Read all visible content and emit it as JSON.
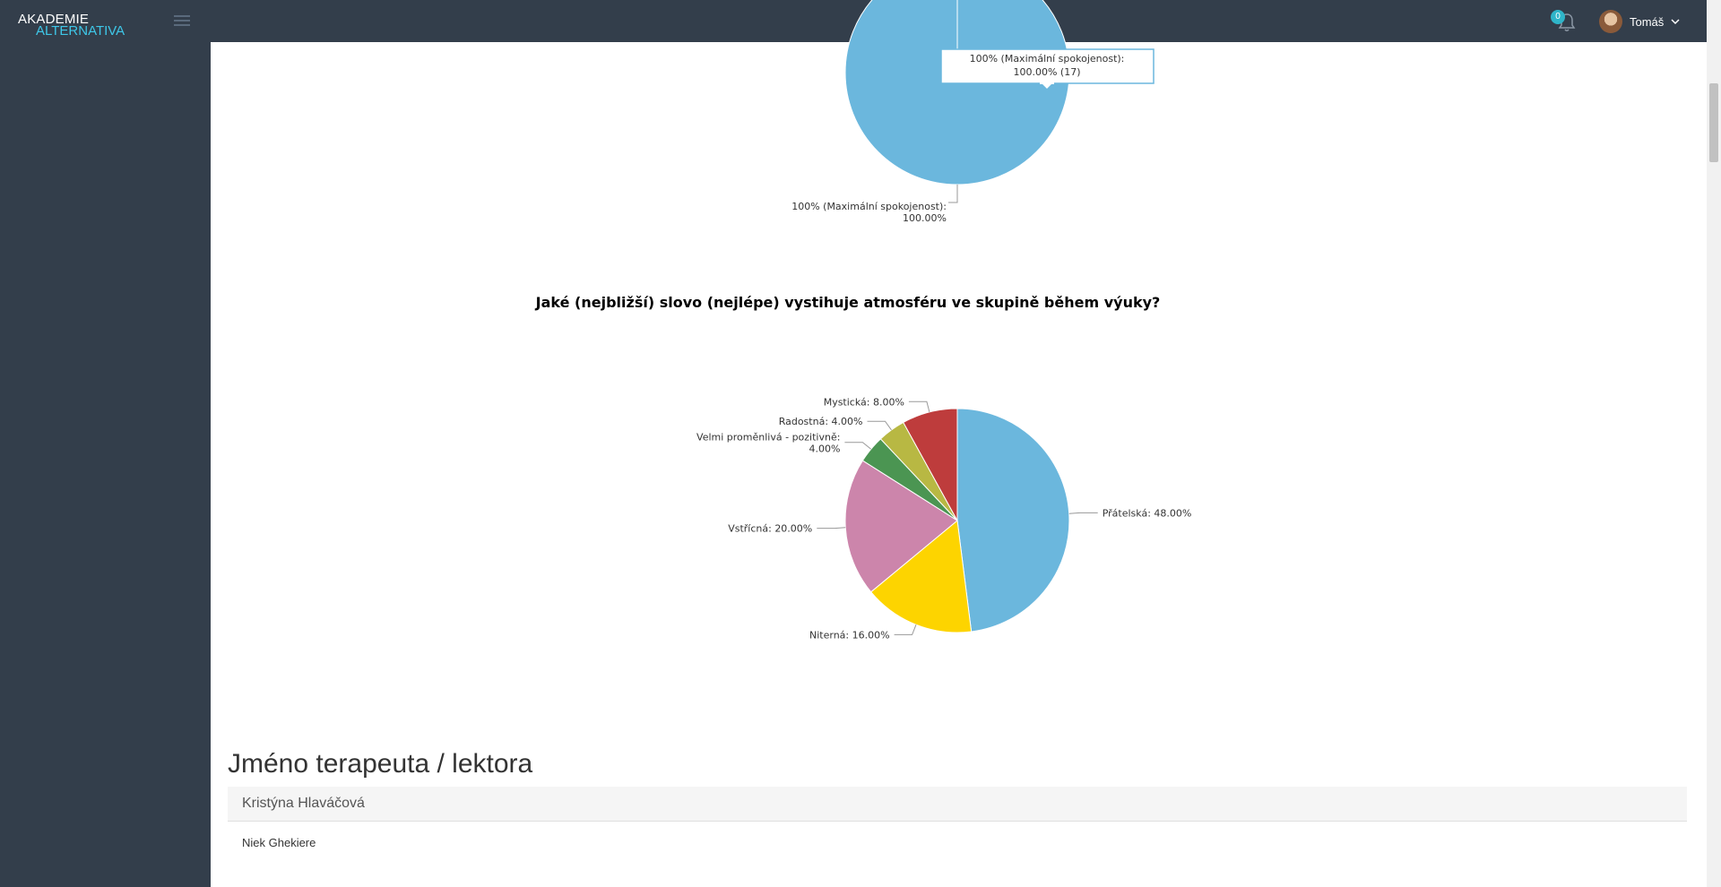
{
  "header": {
    "logo_line1": "AKADEMIE",
    "logo_line2": "ALTERNATIVA",
    "notification_count": "0",
    "user_name": "Tomáš",
    "colors": {
      "bar": "#333e4b",
      "accent": "#3ec7e8"
    }
  },
  "chart_data": [
    {
      "type": "pie",
      "title": "",
      "slices": [
        {
          "label": "100% (Maximální spokojenost)",
          "value": 100.0,
          "count": 17,
          "color": "#6bb7dd"
        }
      ],
      "data_label": {
        "line1": "100% (Maximální spokojenost):",
        "line2": "100.00%"
      },
      "tooltip": {
        "line1": "100% (Maximální spokojenost):",
        "line2": "100.00% (17)"
      }
    },
    {
      "type": "pie",
      "title": "Jaké (nejbližší) slovo (nejlépe) vystihuje atmosféru ve skupině během výuky?",
      "slices": [
        {
          "label": "Přátelská",
          "value": 48.0,
          "color": "#6bb7dd",
          "text": "Přátelská: 48.00%"
        },
        {
          "label": "Niterná",
          "value": 16.0,
          "color": "#fdd400",
          "text": "Niterná: 16.00%"
        },
        {
          "label": "Vstřícná",
          "value": 20.0,
          "color": "#cc85ab",
          "text": "Vstřícná: 20.00%"
        },
        {
          "label": "Velmi proměnlivá - pozitivně",
          "value": 4.0,
          "color": "#4b9552",
          "text": "Velmi proměnlivá - pozitivně:",
          "text2": "4.00%"
        },
        {
          "label": "Radostná",
          "value": 4.0,
          "color": "#b8b843",
          "text": "Radostná: 4.00%"
        },
        {
          "label": "Mystická",
          "value": 8.0,
          "color": "#be3c3c",
          "text": "Mystická: 8.00%"
        }
      ]
    }
  ],
  "section": {
    "heading": "Jméno terapeuta / lektora",
    "table_header": "Kristýna Hlaváčová",
    "rows": [
      "Niek Ghekiere"
    ]
  }
}
